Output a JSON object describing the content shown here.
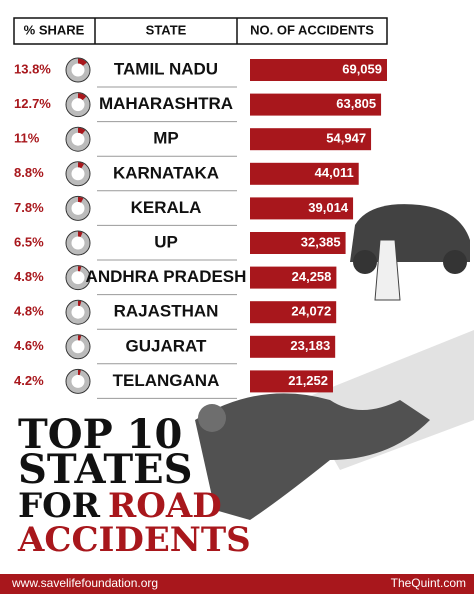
{
  "header": {
    "share": "% SHARE",
    "state": "STATE",
    "accidents": "NO. OF ACCIDENTS"
  },
  "chart_data": {
    "type": "bar",
    "orientation": "horizontal",
    "title_lines": [
      "TOP 10",
      "STATES",
      "FOR",
      "ROAD",
      "ACCIDENTS"
    ],
    "categories": [
      "TAMIL NADU",
      "MAHARASHTRA",
      "MP",
      "KARNATAKA",
      "KERALA",
      "UP",
      "ANDHRA PRADESH",
      "RAJASTHAN",
      "GUJARAT",
      "TELANGANA"
    ],
    "values": [
      69059,
      63805,
      54947,
      44011,
      39014,
      32385,
      24258,
      24072,
      23183,
      21252
    ],
    "value_labels": [
      "69,059",
      "63,805",
      "54,947",
      "44,011",
      "39,014",
      "32,385",
      "24,258",
      "24,072",
      "23,183",
      "21,252"
    ],
    "color": "#a8171c",
    "share": {
      "values": [
        13.8,
        12.7,
        11,
        8.8,
        7.8,
        6.5,
        4.8,
        4.8,
        4.6,
        4.2
      ],
      "value_labels": [
        "13.8%",
        "12.7%",
        "11%",
        "8.8%",
        "7.8%",
        "6.5%",
        "4.8%",
        "4.8%",
        "4.6%",
        "4.2%"
      ],
      "color": "#a8171c"
    }
  },
  "footer": {
    "left": "www.savelifefoundation.org",
    "right": "TheQuint.com"
  }
}
